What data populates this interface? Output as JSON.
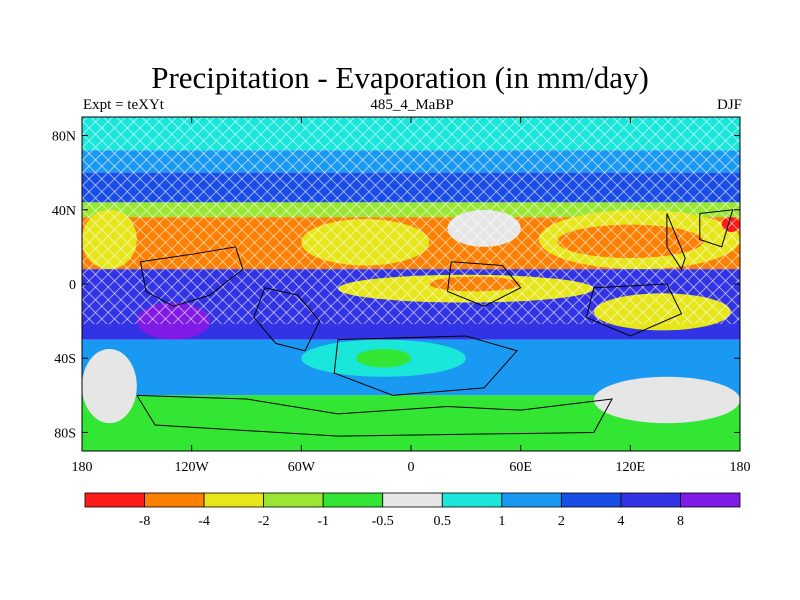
{
  "title": "Precipitation - Evaporation (in mm/day)",
  "subtitle_left": "Expt = teXYt",
  "subtitle_center": "485_4_MaBP",
  "subtitle_right": "DJF",
  "y_ticks": [
    "80N",
    "40N",
    "0",
    "40S",
    "80S"
  ],
  "x_ticks": [
    "180",
    "120W",
    "60W",
    "0",
    "60E",
    "120E",
    "180"
  ],
  "colorbar_labels": [
    "-8",
    "-4",
    "-2",
    "-1",
    "-0.5",
    "0.5",
    "1",
    "2",
    "4",
    "8"
  ],
  "colorbar_colors": [
    "#ff1a1a",
    "#ff8000",
    "#e6e61a",
    "#99e633",
    "#33e633",
    "#e6e6e6",
    "#1ae6d9",
    "#1a99f2",
    "#1a4ce6",
    "#3333e6",
    "#801ae6"
  ],
  "map": {
    "ocean_bands": [
      {
        "lat": [
          90,
          72
        ],
        "color": "#1ae6d9"
      },
      {
        "lat": [
          72,
          60
        ],
        "color": "#1a99f2"
      },
      {
        "lat": [
          60,
          44
        ],
        "color": "#1a4ce6"
      },
      {
        "lat": [
          44,
          36
        ],
        "color": "#99e633"
      },
      {
        "lat": [
          36,
          8
        ],
        "color": "#ff8000"
      },
      {
        "lat": [
          8,
          -30
        ],
        "color": "#3333e6"
      },
      {
        "lat": [
          -30,
          -60
        ],
        "color": "#1a99f2"
      },
      {
        "lat": [
          -60,
          -90
        ],
        "color": "#33e633"
      }
    ],
    "patches": [
      {
        "lon": [
          -170,
          -70
        ],
        "lat": [
          36,
          15
        ],
        "color": "#ff8000"
      },
      {
        "lon": [
          -180,
          -150
        ],
        "lat": [
          40,
          8
        ],
        "color": "#e6e61a"
      },
      {
        "lon": [
          -60,
          10
        ],
        "lat": [
          35,
          10
        ],
        "color": "#e6e61a"
      },
      {
        "lon": [
          20,
          60
        ],
        "lat": [
          40,
          20
        ],
        "color": "#e6e6e6"
      },
      {
        "lon": [
          70,
          180
        ],
        "lat": [
          40,
          8
        ],
        "color": "#e6e61a"
      },
      {
        "lon": [
          80,
          160
        ],
        "lat": [
          32,
          14
        ],
        "color": "#ff8000"
      },
      {
        "lon": [
          170,
          180
        ],
        "lat": [
          36,
          28
        ],
        "color": "#ff1a1a"
      },
      {
        "lon": [
          -40,
          100
        ],
        "lat": [
          5,
          -10
        ],
        "color": "#e6e61a"
      },
      {
        "lon": [
          10,
          60
        ],
        "lat": [
          4,
          -4
        ],
        "color": "#ff8000"
      },
      {
        "lon": [
          100,
          175
        ],
        "lat": [
          -5,
          -25
        ],
        "color": "#e6e61a"
      },
      {
        "lon": [
          -150,
          -110
        ],
        "lat": [
          -10,
          -30
        ],
        "color": "#801ae6"
      },
      {
        "lon": [
          -180,
          -150
        ],
        "lat": [
          -35,
          -75
        ],
        "color": "#e6e6e6"
      },
      {
        "lon": [
          -60,
          30
        ],
        "lat": [
          -30,
          -50
        ],
        "color": "#1ae6d9"
      },
      {
        "lon": [
          100,
          180
        ],
        "lat": [
          -50,
          -75
        ],
        "color": "#e6e6e6"
      },
      {
        "lon": [
          -30,
          0
        ],
        "lat": [
          -35,
          -45
        ],
        "color": "#33e633"
      }
    ],
    "land_outlines": [
      [
        [
          -148,
          12
        ],
        [
          -120,
          16
        ],
        [
          -96,
          20
        ],
        [
          -92,
          8
        ],
        [
          -110,
          -6
        ],
        [
          -130,
          -12
        ],
        [
          -145,
          -4
        ],
        [
          -148,
          12
        ]
      ],
      [
        [
          -80,
          -2
        ],
        [
          -62,
          -6
        ],
        [
          -50,
          -20
        ],
        [
          -58,
          -36
        ],
        [
          -74,
          -32
        ],
        [
          -86,
          -18
        ],
        [
          -80,
          -2
        ]
      ],
      [
        [
          -40,
          -30
        ],
        [
          30,
          -28
        ],
        [
          58,
          -36
        ],
        [
          40,
          -56
        ],
        [
          -10,
          -60
        ],
        [
          -42,
          -48
        ],
        [
          -40,
          -30
        ]
      ],
      [
        [
          22,
          12
        ],
        [
          50,
          10
        ],
        [
          60,
          -2
        ],
        [
          40,
          -12
        ],
        [
          20,
          -4
        ],
        [
          22,
          12
        ]
      ],
      [
        [
          -150,
          -60
        ],
        [
          -90,
          -62
        ],
        [
          -40,
          -70
        ],
        [
          20,
          -66
        ],
        [
          60,
          -68
        ],
        [
          110,
          -62
        ],
        [
          100,
          -80
        ],
        [
          -40,
          -82
        ],
        [
          -140,
          -76
        ],
        [
          -150,
          -60
        ]
      ],
      [
        [
          100,
          -2
        ],
        [
          140,
          0
        ],
        [
          148,
          -16
        ],
        [
          120,
          -28
        ],
        [
          96,
          -18
        ],
        [
          100,
          -2
        ]
      ],
      [
        [
          140,
          38
        ],
        [
          150,
          14
        ],
        [
          148,
          8
        ],
        [
          140,
          20
        ],
        [
          140,
          38
        ]
      ],
      [
        [
          158,
          38
        ],
        [
          176,
          40
        ],
        [
          170,
          20
        ],
        [
          158,
          24
        ],
        [
          158,
          38
        ]
      ]
    ]
  }
}
